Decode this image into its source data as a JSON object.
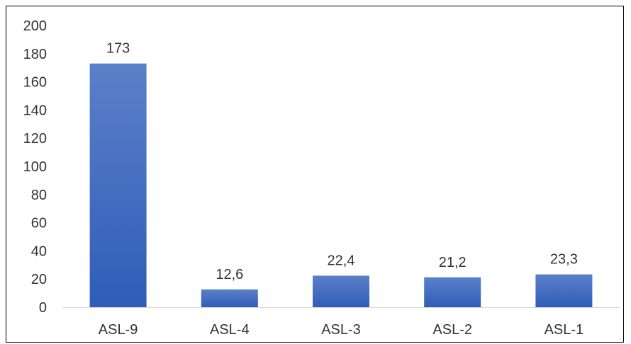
{
  "chart_data": {
    "type": "bar",
    "categories": [
      "ASL-9",
      "ASL-4",
      "ASL-3",
      "ASL-2",
      "ASL-1"
    ],
    "values": [
      173,
      12.6,
      22.4,
      21.2,
      23.3
    ],
    "data_labels": [
      "173",
      "12,6",
      "22,4",
      "21,2",
      "23,3"
    ],
    "yticks": [
      0,
      20,
      40,
      60,
      80,
      100,
      120,
      140,
      160,
      180,
      200
    ],
    "ylim": [
      0,
      200
    ],
    "grid": false,
    "legend": "none",
    "colors": {
      "bar_top": "#5b80c9",
      "bar_bottom": "#2f5db8",
      "axis": "#d9d9d9",
      "text": "#333333",
      "frame": "#000000"
    }
  }
}
